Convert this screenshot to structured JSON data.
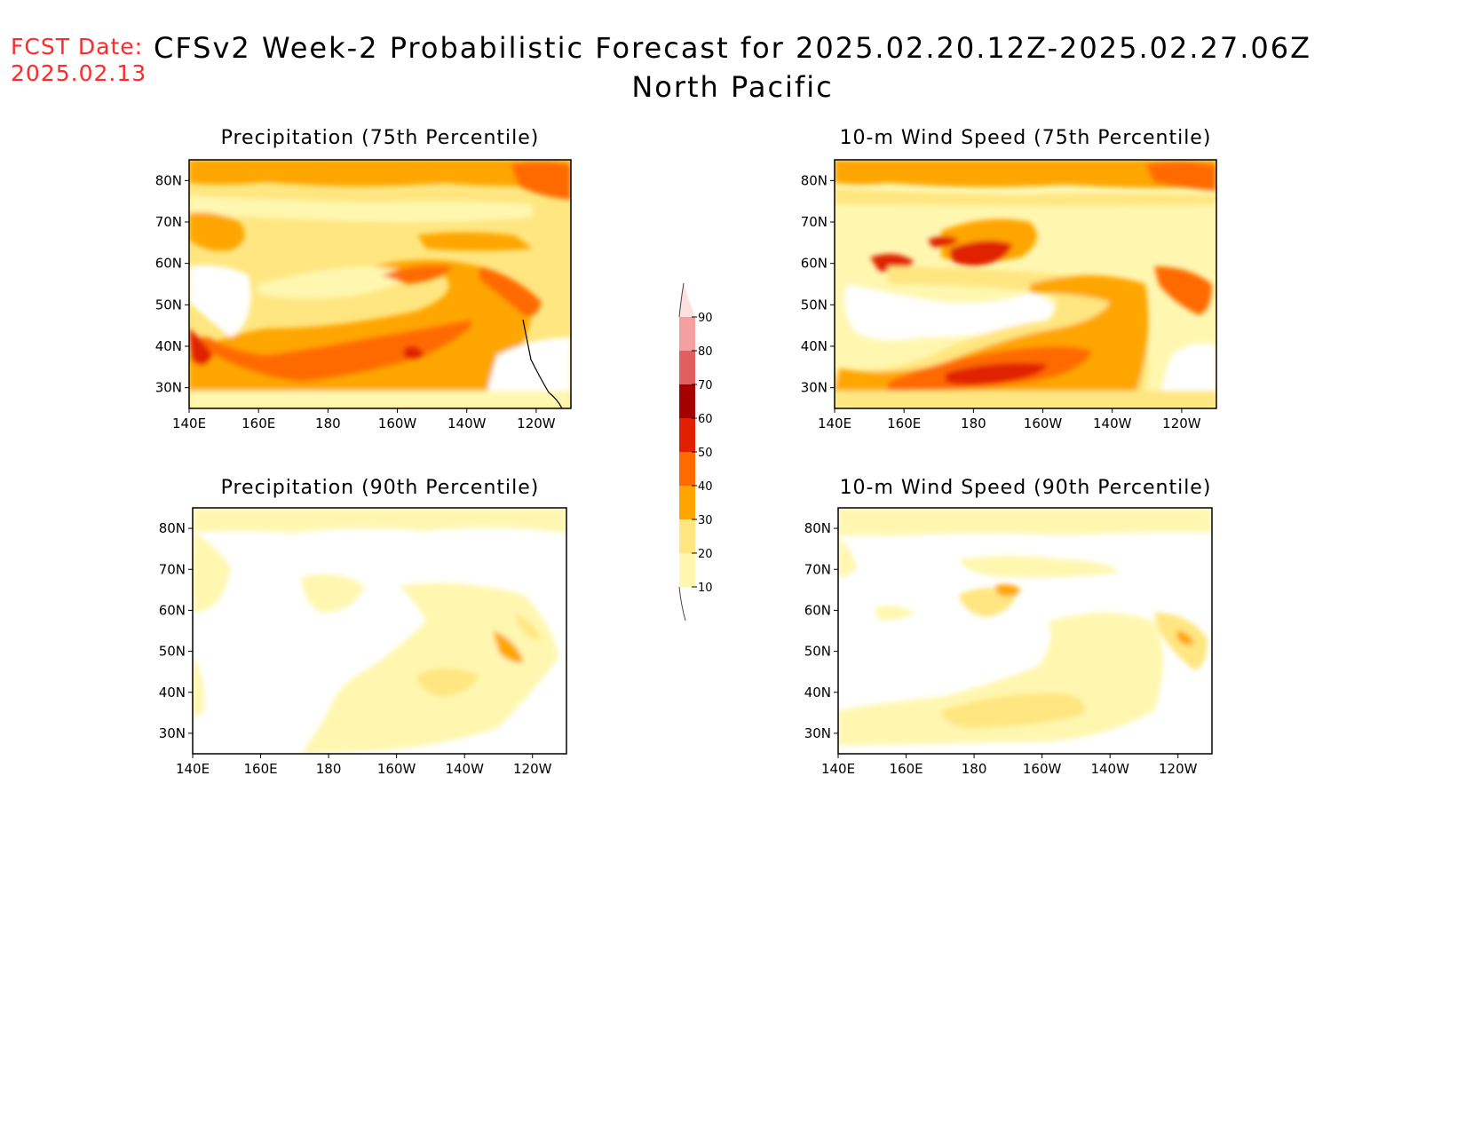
{
  "fcst_date": {
    "label": "FCST Date:",
    "value": "2025.02.13"
  },
  "title": {
    "line1": "CFSv2 Week-2 Probabilistic Forecast for 2025.02.20.12Z-2025.02.27.06Z",
    "line2": "North Pacific"
  },
  "panels": [
    {
      "id": "precip75",
      "title": "Precipitation (75th Percentile)",
      "intensity": "high"
    },
    {
      "id": "wind75",
      "title": "10-m Wind Speed (75th Percentile)",
      "intensity": "high"
    },
    {
      "id": "precip90",
      "title": "Precipitation (90th Percentile)",
      "intensity": "low"
    },
    {
      "id": "wind90",
      "title": "10-m Wind Speed (90th Percentile)",
      "intensity": "low"
    }
  ],
  "axes": {
    "lon_labels": [
      "140E",
      "160E",
      "180",
      "160W",
      "140W",
      "120W"
    ],
    "lat_labels": [
      "80N",
      "70N",
      "60N",
      "50N",
      "40N",
      "30N"
    ]
  },
  "colorbar": {
    "levels": [
      "10",
      "20",
      "30",
      "40",
      "50",
      "60",
      "70",
      "80",
      "90"
    ],
    "colors": [
      "#fff7b0",
      "#ffe680",
      "#ffa500",
      "#ff6a00",
      "#e02000",
      "#a50000",
      "#e06060",
      "#f4a0a0",
      "#ffe0e0"
    ]
  }
}
